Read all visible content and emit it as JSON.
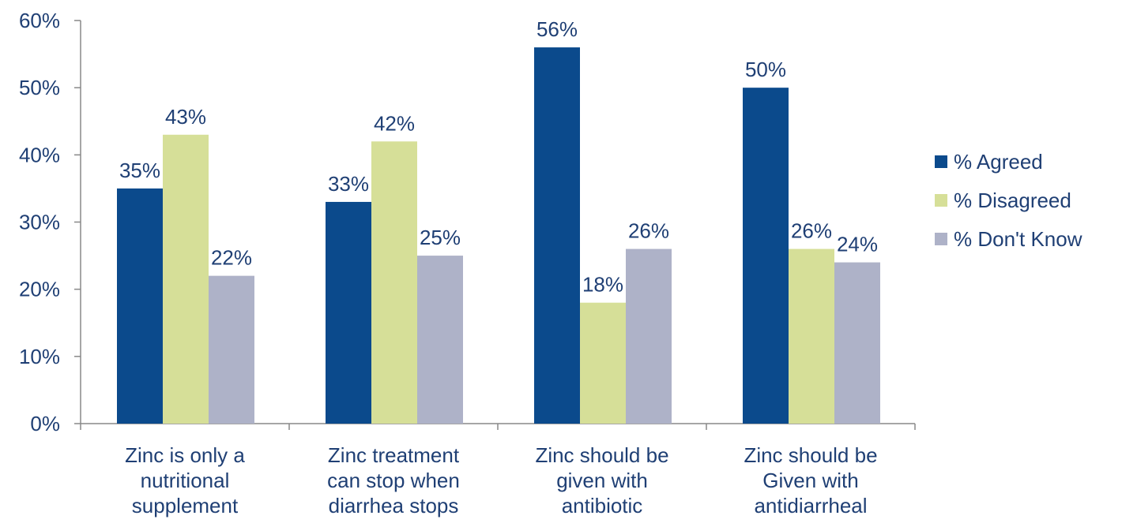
{
  "chart_data": {
    "type": "bar",
    "categories": [
      [
        "Zinc is only a",
        "nutritional",
        "supplement"
      ],
      [
        "Zinc treatment",
        "can stop when",
        "diarrhea stops"
      ],
      [
        "Zinc should be",
        "given with",
        "antibiotic"
      ],
      [
        "Zinc should be",
        "Given with",
        "antidiarrheal"
      ]
    ],
    "series": [
      {
        "name": "% Agreed",
        "values": [
          35,
          33,
          56,
          50
        ],
        "labels": [
          "35%",
          "33%",
          "56%",
          "50%"
        ],
        "color": "#0b4a8c"
      },
      {
        "name": "% Disagreed",
        "values": [
          43,
          42,
          18,
          26
        ],
        "labels": [
          "43%",
          "42%",
          "18%",
          "26%"
        ],
        "color": "#d6df98"
      },
      {
        "name": "% Don't Know",
        "values": [
          22,
          25,
          26,
          24
        ],
        "labels": [
          "22%",
          "25%",
          "26%",
          "24%"
        ],
        "color": "#aeb2c8"
      }
    ],
    "ylim": [
      0,
      60
    ],
    "yticks": [
      0,
      10,
      20,
      30,
      40,
      50,
      60
    ],
    "ytick_labels": [
      "0%",
      "10%",
      "20%",
      "30%",
      "40%",
      "50%",
      "60%"
    ],
    "grid": false,
    "legend_position": "right"
  },
  "colors": {
    "axis": "#888888",
    "text": "#1f3f74"
  }
}
